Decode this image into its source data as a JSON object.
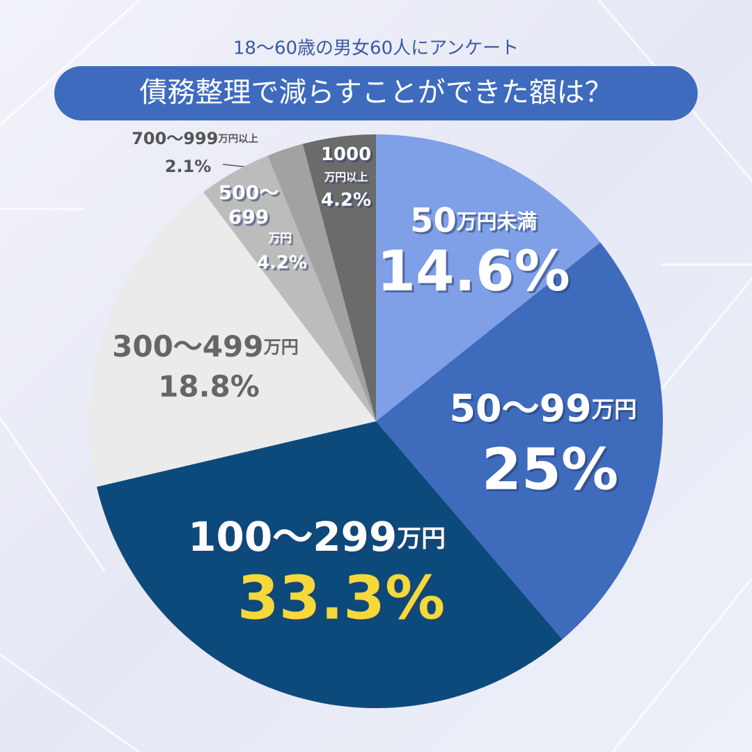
{
  "chart_data": {
    "type": "pie",
    "subtitle": "18〜60歳の男女60人にアンケート",
    "title": "債務整理で減らすことができた額は？",
    "categories": [
      "50万円未満",
      "50〜99万円",
      "100〜299万円",
      "300〜499万円",
      "500〜699万円",
      "700〜999万円以上",
      "1000万円以上"
    ],
    "values": [
      14.6,
      25,
      33.3,
      18.8,
      4.2,
      2.1,
      4.2
    ],
    "value_labels": [
      "14.6%",
      "25%",
      "33.3%",
      "18.8%",
      "4.2%",
      "2.1%",
      "4.2%"
    ],
    "colors": [
      "#7f9fe6",
      "#3f6bbd",
      "#0d4a7c",
      "#ebebeb",
      "#bcbcbc",
      "#a2a2a2",
      "#6b6b6b"
    ]
  }
}
